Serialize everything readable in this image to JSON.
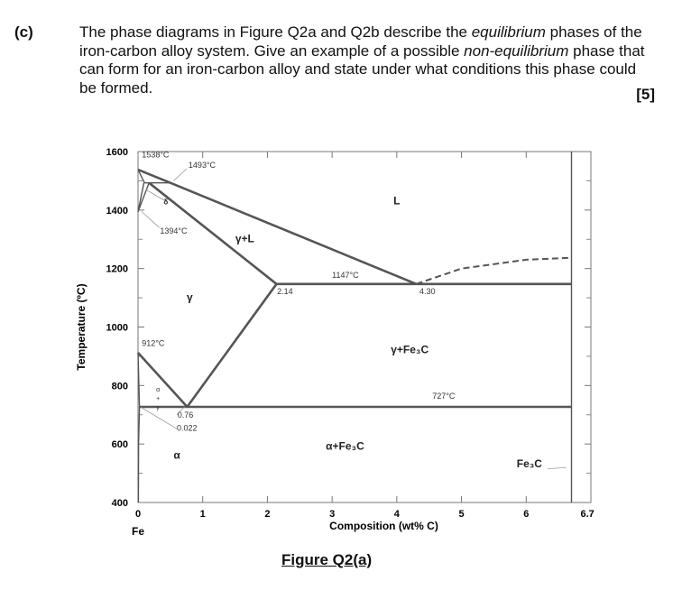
{
  "question": {
    "label": "(c)",
    "segments": [
      {
        "text": "The phase diagrams in Figure Q2a and Q2b describe the ",
        "italic": false
      },
      {
        "text": "equilibrium",
        "italic": true
      },
      {
        "text": " phases of the iron-carbon alloy system. Give an example of a possible ",
        "italic": false
      },
      {
        "text": "non-equilibrium",
        "italic": true
      },
      {
        "text": " phase that can form for an iron-carbon alloy and state under what conditions this phase could be formed.",
        "italic": false
      }
    ],
    "marks": "[5]"
  },
  "figure_caption": "Figure Q2(a)",
  "chart_data": {
    "type": "phase-diagram",
    "xlabel": "Composition (wt% C)",
    "ylabel": "Temperature (ºC)",
    "x_ticks": [
      0,
      1,
      2,
      3,
      4,
      5,
      6,
      6.7
    ],
    "x_tick_labels": [
      "0",
      "1",
      "2",
      "3",
      "4",
      "5",
      "6",
      "6.7"
    ],
    "x_origin_label": "Fe",
    "y_ticks": [
      400,
      600,
      800,
      1000,
      1200,
      1400,
      1600
    ],
    "y_tick_labels": [
      "400",
      "600",
      "800",
      "1000",
      "1200",
      "1400",
      "1600"
    ],
    "xlim": [
      0,
      7
    ],
    "ylim": [
      400,
      1600
    ],
    "grid": false,
    "lines": [
      {
        "name": "liquidus-left",
        "points": [
          [
            0,
            1538
          ],
          [
            0.5,
            1493
          ],
          [
            4.3,
            1147
          ]
        ]
      },
      {
        "name": "liquidus-right",
        "dashed": true,
        "points": [
          [
            4.3,
            1147
          ],
          [
            5.0,
            1200
          ],
          [
            6.0,
            1230
          ],
          [
            6.7,
            1237
          ]
        ]
      },
      {
        "name": "solidus",
        "points": [
          [
            0.17,
            1493
          ],
          [
            2.14,
            1147
          ]
        ]
      },
      {
        "name": "eutectic",
        "points": [
          [
            2.14,
            1147
          ],
          [
            6.7,
            1147
          ]
        ]
      },
      {
        "name": "acm",
        "points": [
          [
            0.76,
            727
          ],
          [
            2.14,
            1147
          ]
        ]
      },
      {
        "name": "a3",
        "points": [
          [
            0,
            912
          ],
          [
            0.76,
            727
          ]
        ]
      },
      {
        "name": "eutectoid",
        "points": [
          [
            0.022,
            727
          ],
          [
            6.7,
            727
          ]
        ]
      },
      {
        "name": "alpha-boundary-left",
        "points": [
          [
            0,
            912
          ],
          [
            0.022,
            727
          ]
        ]
      },
      {
        "name": "alpha-solvus",
        "points": [
          [
            0.022,
            727
          ],
          [
            0.008,
            600
          ],
          [
            0.005,
            400
          ]
        ]
      },
      {
        "name": "cementite",
        "points": [
          [
            6.7,
            400
          ],
          [
            6.7,
            1600
          ]
        ]
      },
      {
        "name": "delta-a",
        "points": [
          [
            0,
            1538
          ],
          [
            0.1,
            1493
          ]
        ]
      },
      {
        "name": "delta-b",
        "points": [
          [
            0,
            1394
          ],
          [
            0.09,
            1493
          ]
        ]
      },
      {
        "name": "delta-c",
        "points": [
          [
            0,
            1394
          ],
          [
            0.17,
            1493
          ]
        ]
      },
      {
        "name": "peritectic",
        "points": [
          [
            0.09,
            1493
          ],
          [
            0.5,
            1493
          ]
        ]
      }
    ],
    "region_labels": [
      {
        "text": "L",
        "x": 4.0,
        "y": 1420
      },
      {
        "text": "γ+L",
        "x": 1.65,
        "y": 1290
      },
      {
        "text": "γ",
        "x": 0.8,
        "y": 1090
      },
      {
        "text": "γ+Fe₃C",
        "x": 4.2,
        "y": 910
      },
      {
        "text": "α+Fe₃C",
        "x": 3.2,
        "y": 580
      },
      {
        "text": "α",
        "x": 0.6,
        "y": 550
      },
      {
        "text": "Fe₃C",
        "x": 6.05,
        "y": 520
      },
      {
        "text": "δ",
        "x": 0.43,
        "y": 1420
      }
    ],
    "annotations": [
      {
        "text": "1538°C",
        "x": 0.06,
        "y": 1580
      },
      {
        "text": "1493°C",
        "x": 0.78,
        "y": 1545
      },
      {
        "text": "1394°C",
        "x": 0.34,
        "y": 1320
      },
      {
        "text": "1147°C",
        "x": 3.0,
        "y": 1168
      },
      {
        "text": "2.14",
        "x": 2.15,
        "y": 1112
      },
      {
        "text": "4.30",
        "x": 4.35,
        "y": 1112
      },
      {
        "text": "912°C",
        "x": 0.06,
        "y": 935
      },
      {
        "text": "727°C",
        "x": 4.55,
        "y": 755
      },
      {
        "text": "0.76",
        "x": 0.61,
        "y": 690
      },
      {
        "text": "0.022",
        "x": 0.6,
        "y": 645
      },
      {
        "text": "α",
        "x": 0.28,
        "y": 780
      },
      {
        "text": "+",
        "x": 0.28,
        "y": 748
      },
      {
        "text": "γ",
        "x": 0.28,
        "y": 718
      }
    ]
  }
}
